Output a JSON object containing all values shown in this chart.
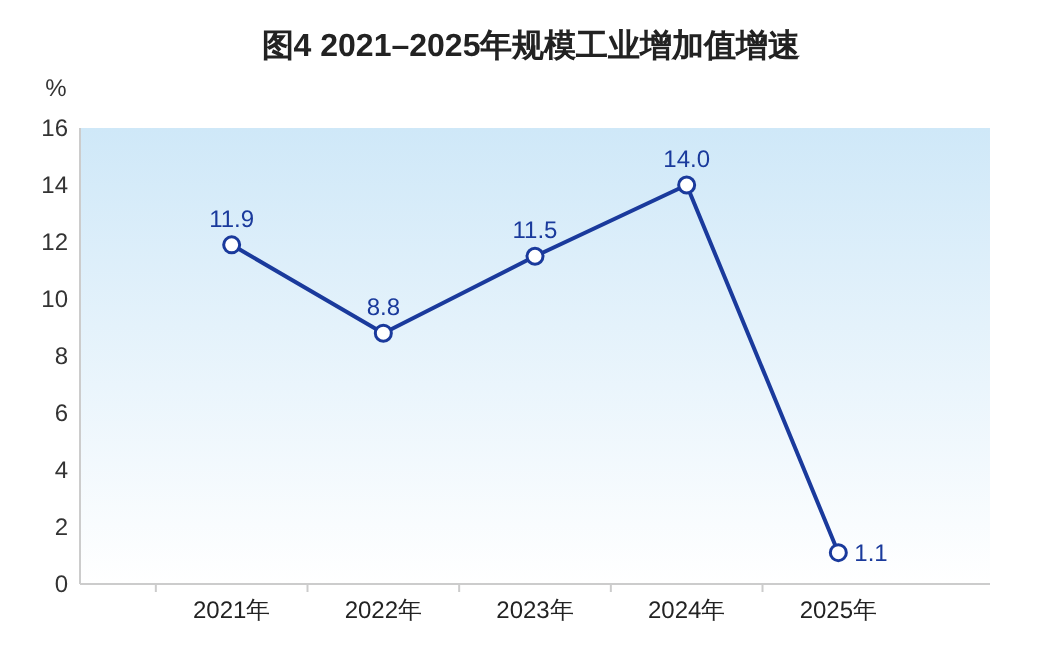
{
  "chart_data": {
    "type": "line",
    "title": "图4 2021–2025年规模工业增加值增速",
    "ylabel": "%",
    "categories": [
      "2021年",
      "2022年",
      "2023年",
      "2024年",
      "2025年"
    ],
    "series": [
      {
        "color": "#1a3a9c",
        "values": [
          11.9,
          8.8,
          11.5,
          14.0,
          1.1
        ]
      }
    ],
    "ylim": [
      0,
      16
    ],
    "yticks": [
      0,
      2,
      4,
      6,
      8,
      10,
      12,
      14,
      16
    ],
    "marker": "circle",
    "value_labels": [
      "11.9",
      "8.8",
      "11.5",
      "14.0",
      "1.1"
    ]
  }
}
